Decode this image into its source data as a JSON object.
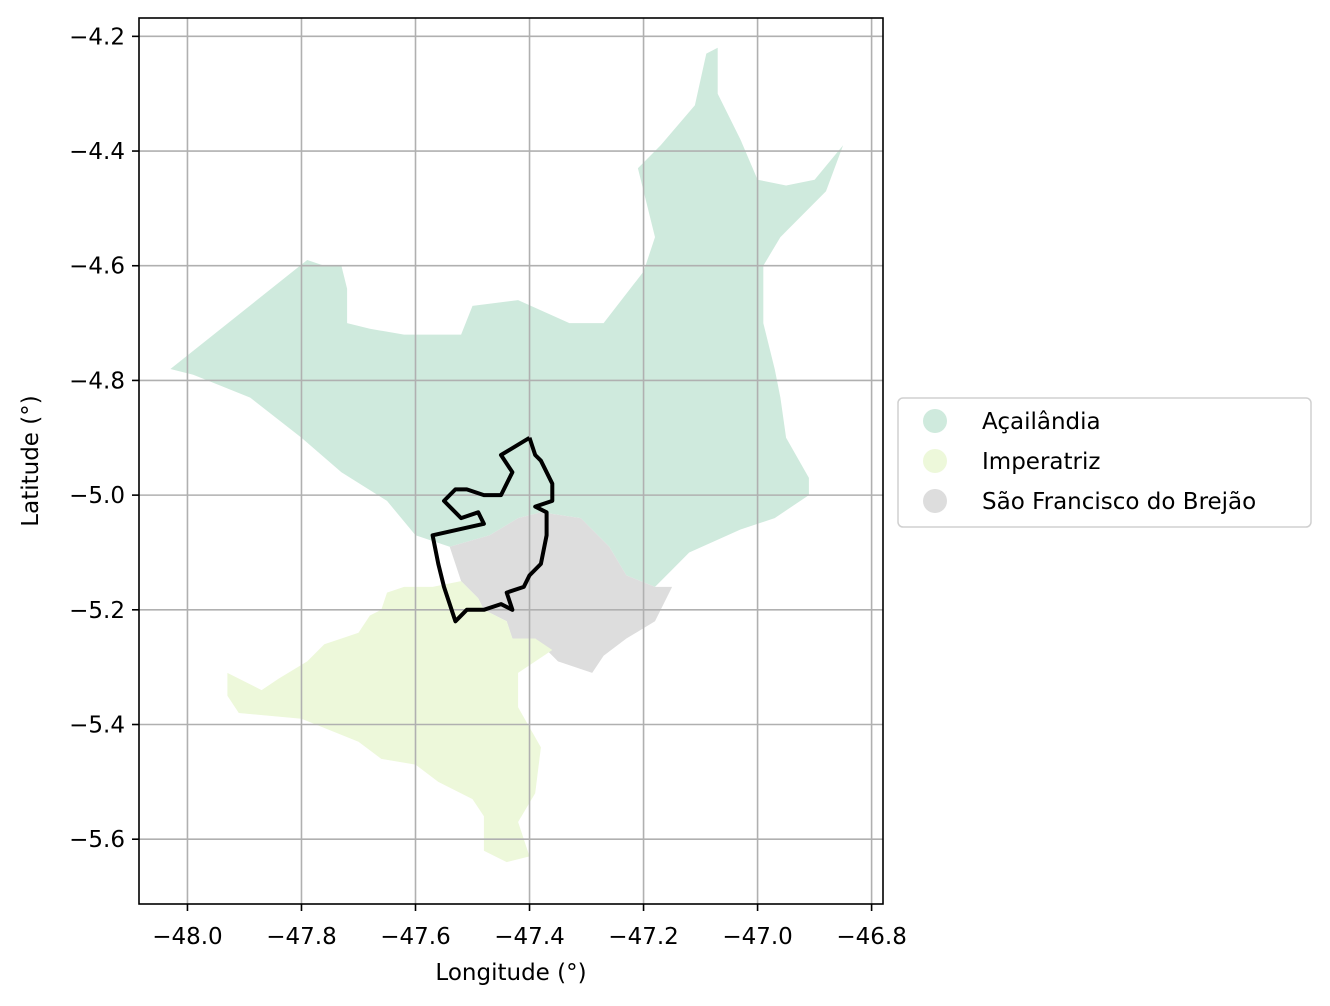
{
  "map": {
    "xlabel": "Longitude (°)",
    "ylabel": "Latitude (°)",
    "xlim": [
      -48.085,
      -46.78
    ],
    "ylim": [
      -5.713,
      -4.168
    ],
    "grid": true,
    "x_ticks": [
      {
        "value": -48.0,
        "label": "−48.0"
      },
      {
        "value": -47.8,
        "label": "−47.8"
      },
      {
        "value": -47.6,
        "label": "−47.6"
      },
      {
        "value": -47.4,
        "label": "−47.4"
      },
      {
        "value": -47.2,
        "label": "−47.2"
      },
      {
        "value": -47.0,
        "label": "−47.0"
      },
      {
        "value": -46.8,
        "label": "−46.8"
      }
    ],
    "y_ticks": [
      {
        "value": -4.2,
        "label": "−4.2"
      },
      {
        "value": -4.4,
        "label": "−4.4"
      },
      {
        "value": -4.6,
        "label": "−4.6"
      },
      {
        "value": -4.8,
        "label": "−4.8"
      },
      {
        "value": -5.0,
        "label": "−5.0"
      },
      {
        "value": -5.2,
        "label": "−5.2"
      },
      {
        "value": -5.4,
        "label": "−5.4"
      },
      {
        "value": -5.6,
        "label": "−5.6"
      }
    ],
    "legend": {
      "placement": "right",
      "entries": [
        {
          "label": "Açailândia",
          "color": "#cfeadd"
        },
        {
          "label": "Imperatriz",
          "color": "#edf8da"
        },
        {
          "label": "São Francisco do Brejão",
          "color": "#dddddd"
        }
      ]
    },
    "regions": [
      {
        "name": "Açailândia",
        "color": "#cfeadd",
        "coords": [
          [
            -48.03,
            -4.78
          ],
          [
            -47.79,
            -4.59
          ],
          [
            -47.76,
            -4.6
          ],
          [
            -47.73,
            -4.6
          ],
          [
            -47.72,
            -4.64
          ],
          [
            -47.72,
            -4.7
          ],
          [
            -47.68,
            -4.71
          ],
          [
            -47.62,
            -4.72
          ],
          [
            -47.52,
            -4.72
          ],
          [
            -47.5,
            -4.67
          ],
          [
            -47.42,
            -4.66
          ],
          [
            -47.33,
            -4.7
          ],
          [
            -47.27,
            -4.7
          ],
          [
            -47.2,
            -4.61
          ],
          [
            -47.18,
            -4.55
          ],
          [
            -47.21,
            -4.43
          ],
          [
            -47.17,
            -4.39
          ],
          [
            -47.11,
            -4.32
          ],
          [
            -47.09,
            -4.23
          ],
          [
            -47.07,
            -4.22
          ],
          [
            -47.07,
            -4.3
          ],
          [
            -47.03,
            -4.38
          ],
          [
            -47.0,
            -4.45
          ],
          [
            -46.95,
            -4.46
          ],
          [
            -46.9,
            -4.45
          ],
          [
            -46.85,
            -4.39
          ],
          [
            -46.88,
            -4.47
          ],
          [
            -46.96,
            -4.55
          ],
          [
            -46.99,
            -4.6
          ],
          [
            -46.99,
            -4.7
          ],
          [
            -46.97,
            -4.78
          ],
          [
            -46.96,
            -4.83
          ],
          [
            -46.95,
            -4.9
          ],
          [
            -46.91,
            -4.97
          ],
          [
            -46.91,
            -5.0
          ],
          [
            -46.97,
            -5.04
          ],
          [
            -47.03,
            -5.06
          ],
          [
            -47.12,
            -5.1
          ],
          [
            -47.15,
            -5.13
          ],
          [
            -47.18,
            -5.16
          ],
          [
            -47.23,
            -5.14
          ],
          [
            -47.26,
            -5.09
          ],
          [
            -47.31,
            -5.04
          ],
          [
            -47.38,
            -5.03
          ],
          [
            -47.42,
            -5.04
          ],
          [
            -47.47,
            -5.07
          ],
          [
            -47.54,
            -5.09
          ],
          [
            -47.6,
            -5.07
          ],
          [
            -47.65,
            -5.01
          ],
          [
            -47.73,
            -4.96
          ],
          [
            -47.8,
            -4.9
          ],
          [
            -47.89,
            -4.83
          ],
          [
            -47.99,
            -4.79
          ],
          [
            -48.03,
            -4.78
          ]
        ]
      },
      {
        "name": "São Francisco do Brejão",
        "color": "#dddddd",
        "coords": [
          [
            -47.54,
            -5.09
          ],
          [
            -47.47,
            -5.07
          ],
          [
            -47.42,
            -5.04
          ],
          [
            -47.38,
            -5.03
          ],
          [
            -47.31,
            -5.04
          ],
          [
            -47.26,
            -5.09
          ],
          [
            -47.23,
            -5.14
          ],
          [
            -47.18,
            -5.16
          ],
          [
            -47.15,
            -5.16
          ],
          [
            -47.18,
            -5.22
          ],
          [
            -47.23,
            -5.25
          ],
          [
            -47.27,
            -5.28
          ],
          [
            -47.29,
            -5.31
          ],
          [
            -47.35,
            -5.29
          ],
          [
            -47.39,
            -5.25
          ],
          [
            -47.43,
            -5.25
          ],
          [
            -47.44,
            -5.22
          ],
          [
            -47.48,
            -5.2
          ],
          [
            -47.49,
            -5.18
          ],
          [
            -47.52,
            -5.15
          ],
          [
            -47.54,
            -5.09
          ]
        ]
      },
      {
        "name": "Imperatriz",
        "color": "#edf8da",
        "coords": [
          [
            -47.57,
            -5.16
          ],
          [
            -47.62,
            -5.16
          ],
          [
            -47.65,
            -5.17
          ],
          [
            -47.66,
            -5.2
          ],
          [
            -47.68,
            -5.21
          ],
          [
            -47.7,
            -5.24
          ],
          [
            -47.76,
            -5.26
          ],
          [
            -47.79,
            -5.29
          ],
          [
            -47.84,
            -5.32
          ],
          [
            -47.87,
            -5.34
          ],
          [
            -47.93,
            -5.31
          ],
          [
            -47.93,
            -5.35
          ],
          [
            -47.91,
            -5.38
          ],
          [
            -47.8,
            -5.39
          ],
          [
            -47.7,
            -5.43
          ],
          [
            -47.66,
            -5.46
          ],
          [
            -47.6,
            -5.47
          ],
          [
            -47.56,
            -5.5
          ],
          [
            -47.5,
            -5.53
          ],
          [
            -47.48,
            -5.56
          ],
          [
            -47.48,
            -5.62
          ],
          [
            -47.44,
            -5.64
          ],
          [
            -47.4,
            -5.63
          ],
          [
            -47.42,
            -5.57
          ],
          [
            -47.39,
            -5.52
          ],
          [
            -47.38,
            -5.44
          ],
          [
            -47.42,
            -5.37
          ],
          [
            -47.42,
            -5.31
          ],
          [
            -47.36,
            -5.27
          ],
          [
            -47.39,
            -5.25
          ],
          [
            -47.43,
            -5.25
          ],
          [
            -47.44,
            -5.22
          ],
          [
            -47.48,
            -5.2
          ],
          [
            -47.49,
            -5.18
          ],
          [
            -47.52,
            -5.15
          ],
          [
            -47.57,
            -5.16
          ]
        ]
      }
    ],
    "boundary_outline": {
      "color": "#000000",
      "coords": [
        [
          -47.4,
          -4.9
        ],
        [
          -47.45,
          -4.93
        ],
        [
          -47.43,
          -4.96
        ],
        [
          -47.45,
          -5.0
        ],
        [
          -47.48,
          -5.0
        ],
        [
          -47.51,
          -4.99
        ],
        [
          -47.53,
          -4.99
        ],
        [
          -47.55,
          -5.01
        ],
        [
          -47.52,
          -5.04
        ],
        [
          -47.49,
          -5.03
        ],
        [
          -47.48,
          -5.05
        ],
        [
          -47.57,
          -5.07
        ],
        [
          -47.56,
          -5.12
        ],
        [
          -47.55,
          -5.16
        ],
        [
          -47.53,
          -5.22
        ],
        [
          -47.51,
          -5.2
        ],
        [
          -47.48,
          -5.2
        ],
        [
          -47.45,
          -5.19
        ],
        [
          -47.43,
          -5.2
        ],
        [
          -47.44,
          -5.17
        ],
        [
          -47.41,
          -5.16
        ],
        [
          -47.4,
          -5.14
        ],
        [
          -47.38,
          -5.12
        ],
        [
          -47.37,
          -5.07
        ],
        [
          -47.37,
          -5.05
        ],
        [
          -47.37,
          -5.03
        ],
        [
          -47.39,
          -5.02
        ],
        [
          -47.36,
          -5.01
        ],
        [
          -47.36,
          -4.98
        ],
        [
          -47.37,
          -4.96
        ],
        [
          -47.38,
          -4.94
        ],
        [
          -47.39,
          -4.93
        ],
        [
          -47.4,
          -4.9
        ]
      ]
    }
  }
}
